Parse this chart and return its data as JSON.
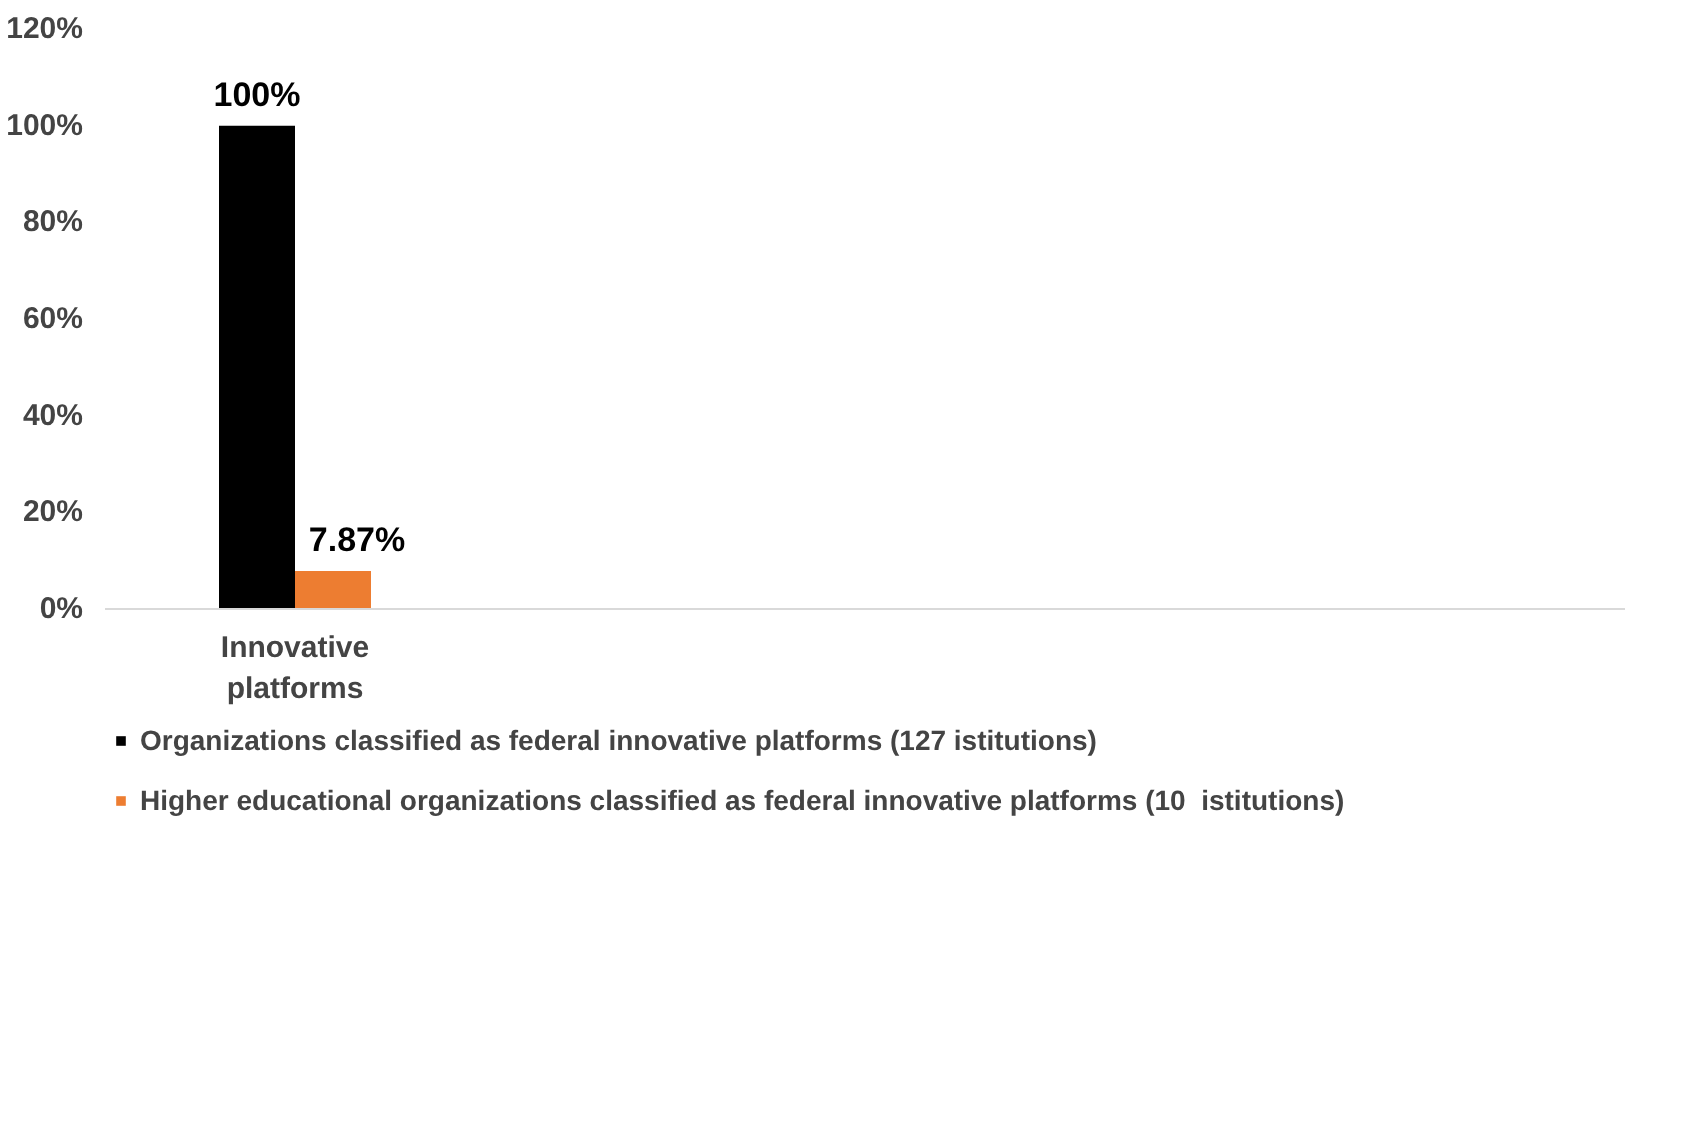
{
  "chart_data": {
    "type": "bar",
    "categories": [
      "Innovative platforms",
      null,
      null,
      null
    ],
    "series": [
      {
        "name": "Organizations classified as federal innovative platforms (127 istitutions)",
        "color": "#000000",
        "values": [
          100,
          null,
          null,
          null
        ],
        "value_labels": [
          "100%",
          null,
          null,
          null
        ]
      },
      {
        "name": "Higher educational organizations classified as federal innovative platforms (10  istitutions)",
        "color": "#ed7d31",
        "values": [
          7.87,
          null,
          null,
          null
        ],
        "value_labels": [
          "7.87%",
          null,
          null,
          null
        ]
      }
    ],
    "ylim": [
      0,
      120
    ],
    "yticks": [
      {
        "value": 0,
        "label": "0%"
      },
      {
        "value": 20,
        "label": "20%"
      },
      {
        "value": 40,
        "label": "40%"
      },
      {
        "value": 60,
        "label": "60%"
      },
      {
        "value": 80,
        "label": "80%"
      },
      {
        "value": 100,
        "label": "100%"
      },
      {
        "value": 120,
        "label": "120%"
      }
    ],
    "grid": false,
    "legend": "bottom"
  }
}
